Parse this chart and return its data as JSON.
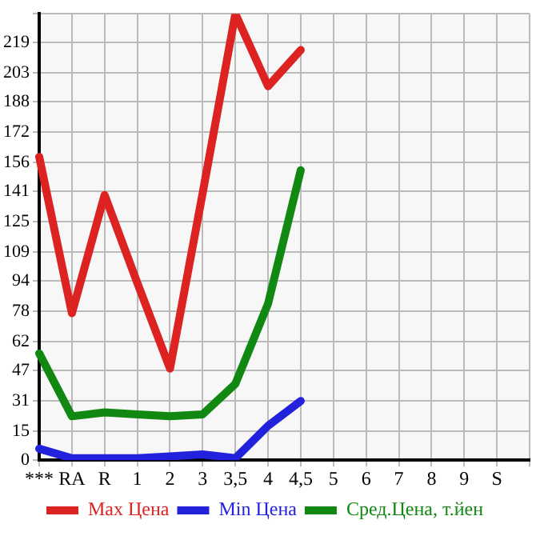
{
  "chart_data": {
    "type": "line",
    "categories": [
      "***",
      "RA",
      "R",
      "1",
      "2",
      "3",
      "3,5",
      "4",
      "4,5",
      "5",
      "6",
      "7",
      "8",
      "9",
      "S",
      null
    ],
    "series": [
      {
        "name": "Max Цена",
        "color": "#dd2222",
        "values": [
          159,
          77,
          139,
          93,
          48,
          140,
          234,
          196,
          215,
          null,
          null,
          null,
          null,
          null,
          null,
          null
        ]
      },
      {
        "name": "Min Цена",
        "color": "#2222dd",
        "values": [
          6,
          1,
          1,
          1,
          2,
          3,
          1,
          18,
          31,
          null,
          null,
          null,
          null,
          null,
          null,
          null
        ]
      },
      {
        "name": "Сред.Цена, т.йен",
        "color": "#118811",
        "values": [
          56,
          23,
          25,
          24,
          23,
          24,
          40,
          82,
          152,
          null,
          null,
          null,
          null,
          null,
          null,
          null
        ]
      }
    ],
    "ylim": [
      0,
      234
    ],
    "yticks": [
      0,
      15,
      31,
      47,
      62,
      78,
      94,
      109,
      125,
      141,
      156,
      172,
      188,
      203,
      219,
      {
        "value": 234,
        "label": null
      }
    ],
    "grid": true,
    "legend": "bottom",
    "marker": "none",
    "line_style": "solid"
  }
}
